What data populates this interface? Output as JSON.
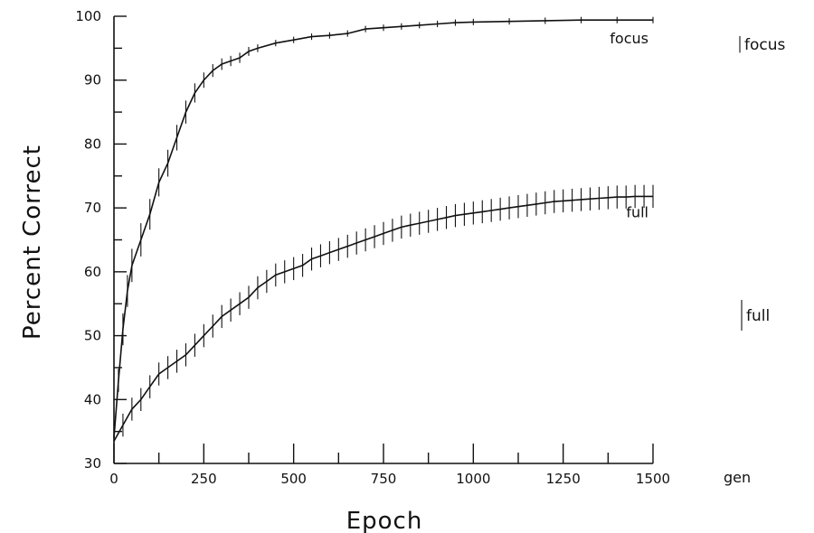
{
  "chart_data": {
    "type": "line",
    "xlabel": "Epoch",
    "ylabel": "Percent Correct",
    "xlim": [
      0,
      1500
    ],
    "ylim": [
      30,
      100
    ],
    "x_ticks": [
      0,
      250,
      500,
      750,
      1000,
      1250,
      1500
    ],
    "y_ticks": [
      30,
      40,
      50,
      60,
      70,
      80,
      90,
      100
    ],
    "x_extra_label": "gen",
    "grid": false,
    "legend_position": "right",
    "series": [
      {
        "name": "focus",
        "x": [
          0,
          12.5,
          25,
          37.5,
          50,
          75,
          100,
          125,
          150,
          175,
          200,
          225,
          250,
          275,
          300,
          325,
          350,
          375,
          400,
          450,
          500,
          550,
          600,
          650,
          700,
          750,
          800,
          850,
          900,
          950,
          1000,
          1100,
          1200,
          1300,
          1400,
          1500
        ],
        "y": [
          34,
          43,
          51,
          57,
          61,
          65,
          69,
          74,
          77,
          81,
          85,
          88,
          90,
          91.5,
          92.5,
          93,
          93.5,
          94.5,
          95,
          95.8,
          96.3,
          96.8,
          97,
          97.3,
          98,
          98.2,
          98.4,
          98.6,
          98.8,
          99,
          99.1,
          99.2,
          99.3,
          99.4,
          99.4,
          99.4
        ],
        "error": [
          0.5,
          1.8,
          2.5,
          2.5,
          2.6,
          2.6,
          2.4,
          2.2,
          2.1,
          2.0,
          1.8,
          1.5,
          1.2,
          1.0,
          0.9,
          0.8,
          0.8,
          0.7,
          0.6,
          0.5,
          0.5,
          0.5,
          0.5,
          0.5,
          0.5,
          0.5,
          0.5,
          0.5,
          0.5,
          0.5,
          0.5,
          0.5,
          0.5,
          0.5,
          0.5,
          0.5
        ]
      },
      {
        "name": "full",
        "x": [
          0,
          25,
          50,
          75,
          100,
          125,
          150,
          175,
          200,
          225,
          250,
          275,
          300,
          325,
          350,
          375,
          400,
          425,
          450,
          475,
          500,
          525,
          550,
          575,
          600,
          625,
          650,
          675,
          700,
          725,
          750,
          775,
          800,
          825,
          850,
          875,
          900,
          925,
          950,
          975,
          1000,
          1025,
          1050,
          1075,
          1100,
          1125,
          1150,
          1175,
          1200,
          1225,
          1250,
          1275,
          1300,
          1325,
          1350,
          1375,
          1400,
          1425,
          1450,
          1475,
          1500
        ],
        "y": [
          33.5,
          36,
          38.5,
          40,
          42,
          44,
          45,
          46,
          47,
          48.5,
          50,
          51.5,
          53,
          54,
          55,
          56,
          57.5,
          58.5,
          59.5,
          60,
          60.5,
          61,
          62,
          62.5,
          63,
          63.5,
          64,
          64.5,
          65,
          65.5,
          66,
          66.5,
          67,
          67.3,
          67.6,
          67.9,
          68.2,
          68.5,
          68.8,
          69,
          69.2,
          69.4,
          69.6,
          69.8,
          70,
          70.2,
          70.4,
          70.6,
          70.8,
          71,
          71.1,
          71.2,
          71.3,
          71.4,
          71.5,
          71.6,
          71.7,
          71.7,
          71.8,
          71.8,
          71.8
        ]
      }
    ],
    "legend": [
      {
        "label": "focus",
        "error_bar": 1.3
      },
      {
        "label": "full",
        "error_bar": 2.4
      }
    ]
  }
}
